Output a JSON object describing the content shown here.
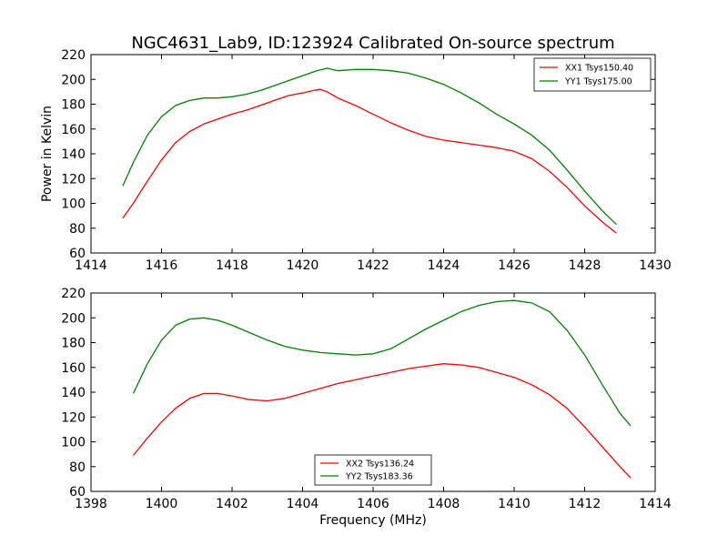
{
  "colors": {
    "red": "#ff0000",
    "green": "#008000"
  },
  "chart_data": [
    {
      "type": "line",
      "title": "NGC4631_Lab9, ID:123924 Calibrated On-source spectrum",
      "xlabel": "",
      "ylabel": "Power in Kelvin",
      "xlim": [
        1414,
        1430
      ],
      "ylim": [
        60,
        220
      ],
      "xticks": [
        1414,
        1416,
        1418,
        1420,
        1422,
        1424,
        1426,
        1428,
        1430
      ],
      "yticks": [
        60,
        80,
        100,
        120,
        140,
        160,
        180,
        200,
        220
      ],
      "legend_position": "top-right",
      "series": [
        {
          "name": "XX1 Tsys150.40",
          "color": "#ff0000",
          "x": [
            1414.9,
            1415.2,
            1415.6,
            1416.0,
            1416.4,
            1416.8,
            1417.2,
            1417.6,
            1418.0,
            1418.4,
            1418.8,
            1419.2,
            1419.6,
            1420.0,
            1420.3,
            1420.5,
            1420.7,
            1421.0,
            1421.5,
            1422.0,
            1422.5,
            1423.0,
            1423.5,
            1424.0,
            1424.5,
            1425.0,
            1425.5,
            1426.0,
            1426.5,
            1427.0,
            1427.5,
            1428.0,
            1428.5,
            1428.9
          ],
          "y": [
            88,
            100,
            118,
            135,
            149,
            158,
            164,
            168,
            172,
            175,
            179,
            183,
            187,
            189,
            191,
            192,
            190,
            185,
            179,
            172,
            165,
            159,
            154,
            151,
            149,
            147,
            145,
            142,
            136,
            126,
            113,
            98,
            85,
            76
          ]
        },
        {
          "name": "YY1 Tsys175.00",
          "color": "#008000",
          "x": [
            1414.9,
            1415.2,
            1415.6,
            1416.0,
            1416.4,
            1416.8,
            1417.2,
            1417.6,
            1418.0,
            1418.4,
            1418.8,
            1419.2,
            1419.6,
            1420.0,
            1420.4,
            1420.7,
            1421.0,
            1421.5,
            1422.0,
            1422.5,
            1423.0,
            1423.5,
            1424.0,
            1424.5,
            1425.0,
            1425.5,
            1426.0,
            1426.5,
            1427.0,
            1427.5,
            1428.0,
            1428.5,
            1428.9
          ],
          "y": [
            114,
            133,
            155,
            170,
            179,
            183,
            185,
            185,
            186,
            188,
            191,
            195,
            199,
            203,
            207,
            209,
            207,
            208,
            208,
            207,
            205,
            201,
            196,
            189,
            181,
            172,
            164,
            155,
            143,
            127,
            110,
            94,
            83
          ]
        }
      ]
    },
    {
      "type": "line",
      "title": "",
      "xlabel": "Frequency (MHz)",
      "ylabel": "",
      "xlim": [
        1398,
        1414
      ],
      "ylim": [
        60,
        220
      ],
      "xticks": [
        1398,
        1400,
        1402,
        1404,
        1406,
        1408,
        1410,
        1412,
        1414
      ],
      "yticks": [
        60,
        80,
        100,
        120,
        140,
        160,
        180,
        200,
        220
      ],
      "legend_position": "bottom-center",
      "series": [
        {
          "name": "XX2 Tsys136.24",
          "color": "#ff0000",
          "x": [
            1399.2,
            1399.6,
            1400.0,
            1400.4,
            1400.8,
            1401.2,
            1401.6,
            1402.0,
            1402.5,
            1403.0,
            1403.5,
            1404.0,
            1404.5,
            1405.0,
            1405.5,
            1406.0,
            1406.5,
            1407.0,
            1407.5,
            1408.0,
            1408.5,
            1409.0,
            1409.5,
            1410.0,
            1410.5,
            1411.0,
            1411.5,
            1412.0,
            1412.5,
            1413.0,
            1413.3
          ],
          "y": [
            89,
            103,
            116,
            127,
            135,
            139,
            139,
            137,
            134,
            133,
            135,
            139,
            143,
            147,
            150,
            153,
            156,
            159,
            161,
            163,
            162,
            160,
            156,
            152,
            146,
            138,
            127,
            112,
            96,
            80,
            71
          ]
        },
        {
          "name": "YY2 Tsys183.36",
          "color": "#008000",
          "x": [
            1399.2,
            1399.6,
            1400.0,
            1400.4,
            1400.8,
            1401.2,
            1401.6,
            1402.0,
            1402.5,
            1403.0,
            1403.5,
            1404.0,
            1404.5,
            1405.0,
            1405.5,
            1406.0,
            1406.5,
            1407.0,
            1407.5,
            1408.0,
            1408.5,
            1409.0,
            1409.5,
            1410.0,
            1410.5,
            1411.0,
            1411.5,
            1412.0,
            1412.5,
            1413.0,
            1413.3
          ],
          "y": [
            139,
            163,
            182,
            194,
            199,
            200,
            198,
            194,
            188,
            182,
            177,
            174,
            172,
            171,
            170,
            171,
            175,
            183,
            191,
            198,
            205,
            210,
            213,
            214,
            212,
            205,
            190,
            170,
            146,
            123,
            113
          ]
        }
      ]
    }
  ]
}
